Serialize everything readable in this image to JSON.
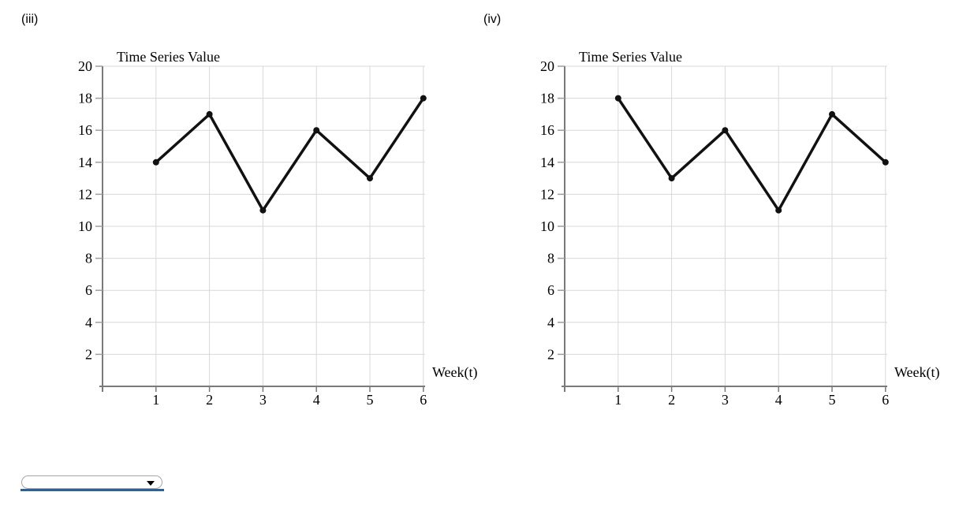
{
  "dropdown": {
    "value": "",
    "underline_color": "#2b6298",
    "caret_icon": "chevron-down"
  },
  "chart_data": [
    {
      "id": "iii",
      "label": "(iii)",
      "type": "line",
      "title": "Time Series Value",
      "xlabel": "Week(t)",
      "ylabel": "",
      "x": [
        1,
        2,
        3,
        4,
        5,
        6
      ],
      "values": [
        14,
        17,
        11,
        16,
        13,
        18
      ],
      "xticks": [
        "1",
        "2",
        "3",
        "4",
        "5",
        "6"
      ],
      "yticks": [
        2,
        4,
        6,
        8,
        10,
        12,
        14,
        16,
        18,
        20
      ],
      "ylim": [
        0,
        20
      ],
      "xlim": [
        0,
        6
      ],
      "grid": true,
      "legend": "none",
      "line_color": "#111111",
      "marker": "circle",
      "grid_color": "#d8d8d8",
      "axis_color": "#7a7a7a"
    },
    {
      "id": "iv",
      "label": "(iv)",
      "type": "line",
      "title": "Time Series Value",
      "xlabel": "Week(t)",
      "ylabel": "",
      "x": [
        1,
        2,
        3,
        4,
        5,
        6
      ],
      "values": [
        18,
        13,
        16,
        11,
        17,
        14
      ],
      "xticks": [
        "1",
        "2",
        "3",
        "4",
        "5",
        "6"
      ],
      "yticks": [
        2,
        4,
        6,
        8,
        10,
        12,
        14,
        16,
        18,
        20
      ],
      "ylim": [
        0,
        20
      ],
      "xlim": [
        0,
        6
      ],
      "grid": true,
      "legend": "none",
      "line_color": "#111111",
      "marker": "circle",
      "grid_color": "#d8d8d8",
      "axis_color": "#7a7a7a"
    }
  ]
}
